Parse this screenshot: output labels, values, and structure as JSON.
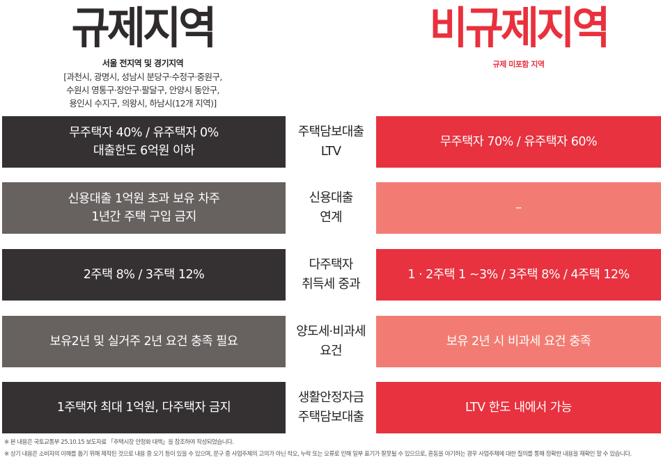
{
  "left_header": {
    "title": "규제지역",
    "subtitle": "서울 전지역 및 경기지역",
    "regions": "[과천시, 광명시, 성남시 분당구·수정구·중원구,\n수원시 영통구·장안구·팔달구, 안양시 동안구,\n용인시 수지구, 의왕시, 하남시(12개 지역)]"
  },
  "right_header": {
    "title": "비규제지역",
    "subtitle": "규제 미포함 지역"
  },
  "rows": [
    {
      "category": "주택담보대출\nLTV",
      "regulated": "무주택자 40% / 유주택자 0%\n대출한도 6억원 이하",
      "non_regulated": "무주택자 70% / 유주택자 60%"
    },
    {
      "category": "신용대출\n연계",
      "regulated": "신용대출 1억원 초과 보유 차주\n1년간 주택 구입 금지",
      "non_regulated": "–"
    },
    {
      "category": "다주택자\n취득세 중과",
      "regulated": "2주택 8% / 3주택 12%",
      "non_regulated": "1 · 2주택 1 ~3% / 3주택 8% / 4주택 12%"
    },
    {
      "category": "양도세·비과세\n요건",
      "regulated": "보유2년 및 실거주 2년 요건 충족 필요",
      "non_regulated": "보유 2년 시 비과세 요건 충족"
    },
    {
      "category": "생활안정자금\n주택담보대출",
      "regulated": "1주택자 최대 1억원, 다주택자 금지",
      "non_regulated": "LTV 한도 내에서 가능"
    }
  ],
  "footnotes": [
    "※ 본 내용은 국토교통부 25.10.15 보도자료 「주택시장 안정화 대책」을 참조하여 작성되었습니다.",
    "※ 상기 내용은 소비자의 이해를 돕기 위해 제작된 것으로 내용 중 오기 등이 있을 수 있으며, 문구 중 사업주체의 고의가 아닌 착오, 누락 또는 오류로 인해 일부 표기가 잘못될 수 있으므로, 혼동을 야기하는 경우 사업주체에 대한 질의를 통해 정확한 내용을 재확인 할 수 있습니다."
  ],
  "colors": {
    "regulated_dark": "#353133",
    "regulated_grey": "#67615f",
    "non_regulated_red": "#e8323f",
    "non_regulated_salmon": "#f27c73"
  }
}
